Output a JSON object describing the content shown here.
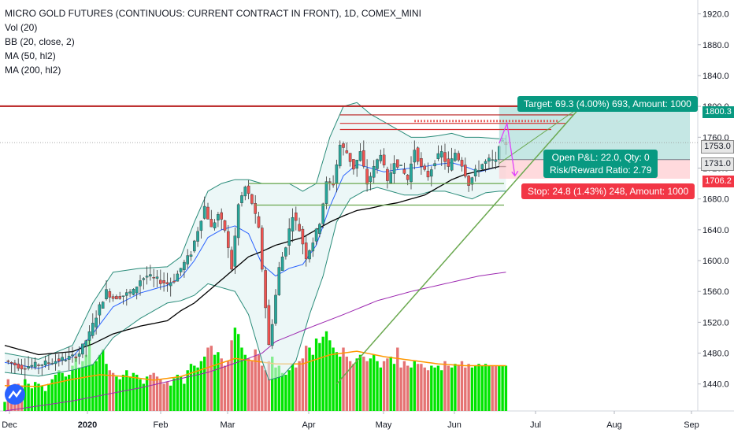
{
  "legend": {
    "title": "MICRO GOLD FUTURES (CONTINUOUS: CURRENT CONTRACT IN FRONT), 1D, COMEX_MINI",
    "vol": "Vol (20)",
    "bb": "BB (20, close, 2)",
    "ma50": "MA (50, hl2)",
    "ma200": "MA (200, hl2)"
  },
  "price_boxes": {
    "target_level": "1800.3",
    "current": "1753.0",
    "entry": "1731.0",
    "stop_level": "1706.2"
  },
  "callouts": {
    "target": "Target: 69.3 (4.00%) 693, Amount: 1000",
    "open_pnl": "Open P&L: 22.0, Qty: 0",
    "risk_reward": "Risk/Reward Ratio: 2.79",
    "stop": "Stop: 24.8 (1.43%) 248, Amount: 1000"
  },
  "colors": {
    "up": "#26a69a",
    "down": "#ef5350",
    "vol_up": "#00e500",
    "vol_down": "#e57373",
    "bb_band": "#2a8c7a",
    "ma50": "#000000",
    "ma200": "#9c27b0",
    "bb_basis": "#2962ff",
    "vol_ma": "#ff9800",
    "target_fill": "#b2dfdb",
    "stop_fill": "#ffcdd2",
    "target_box": "#089981",
    "stop_box": "#f23645",
    "res_line": "#b71c1c",
    "support_line": "#6aa84f"
  },
  "chart_data": {
    "type": "candlestick",
    "title": "MICRO GOLD FUTURES (CONTINUOUS: CURRENT CONTRACT IN FRONT), 1D, COMEX_MINI",
    "x_ticks": [
      "Dec",
      "2020",
      "Feb",
      "Mar",
      "Apr",
      "May",
      "Jun",
      "Jul",
      "Aug",
      "Sep"
    ],
    "y_ticks": [
      1440,
      1480,
      1520,
      1560,
      1600,
      1640,
      1680,
      1720,
      1760,
      1800,
      1840,
      1880,
      1920
    ],
    "ylim": [
      1405,
      1938
    ],
    "price_path": [
      [
        0,
        1470
      ],
      [
        5,
        1462
      ],
      [
        10,
        1465
      ],
      [
        15,
        1470
      ],
      [
        20,
        1475
      ],
      [
        22,
        1480
      ],
      [
        25,
        1505
      ],
      [
        28,
        1540
      ],
      [
        30,
        1560
      ],
      [
        32,
        1552
      ],
      [
        35,
        1555
      ],
      [
        38,
        1560
      ],
      [
        40,
        1575
      ],
      [
        42,
        1580
      ],
      [
        45,
        1575
      ],
      [
        48,
        1570
      ],
      [
        50,
        1575
      ],
      [
        52,
        1590
      ],
      [
        55,
        1610
      ],
      [
        57,
        1640
      ],
      [
        59,
        1670
      ],
      [
        61,
        1642
      ],
      [
        63,
        1660
      ],
      [
        65,
        1640
      ],
      [
        67,
        1590
      ],
      [
        69,
        1672
      ],
      [
        71,
        1695
      ],
      [
        73,
        1675
      ],
      [
        75,
        1640
      ],
      [
        76,
        1590
      ],
      [
        77,
        1540
      ],
      [
        78,
        1490
      ],
      [
        79,
        1520
      ],
      [
        81,
        1590
      ],
      [
        83,
        1620
      ],
      [
        85,
        1660
      ],
      [
        87,
        1640
      ],
      [
        89,
        1605
      ],
      [
        91,
        1625
      ],
      [
        93,
        1650
      ],
      [
        95,
        1700
      ],
      [
        97,
        1700
      ],
      [
        99,
        1750
      ],
      [
        101,
        1740
      ],
      [
        103,
        1720
      ],
      [
        105,
        1740
      ],
      [
        107,
        1700
      ],
      [
        109,
        1720
      ],
      [
        111,
        1740
      ],
      [
        113,
        1700
      ],
      [
        115,
        1730
      ],
      [
        117,
        1720
      ],
      [
        119,
        1705
      ],
      [
        121,
        1745
      ],
      [
        123,
        1720
      ],
      [
        125,
        1710
      ],
      [
        127,
        1730
      ],
      [
        129,
        1740
      ],
      [
        131,
        1720
      ],
      [
        133,
        1740
      ],
      [
        135,
        1725
      ],
      [
        137,
        1700
      ],
      [
        139,
        1715
      ],
      [
        141,
        1725
      ],
      [
        143,
        1730
      ],
      [
        145,
        1728
      ],
      [
        146,
        1752
      ]
    ],
    "bb_upper_path": [
      [
        0,
        1480
      ],
      [
        10,
        1472
      ],
      [
        20,
        1490
      ],
      [
        26,
        1545
      ],
      [
        32,
        1585
      ],
      [
        40,
        1590
      ],
      [
        48,
        1592
      ],
      [
        52,
        1605
      ],
      [
        56,
        1650
      ],
      [
        60,
        1690
      ],
      [
        64,
        1700
      ],
      [
        68,
        1705
      ],
      [
        72,
        1705
      ],
      [
        76,
        1700
      ],
      [
        80,
        1700
      ],
      [
        84,
        1700
      ],
      [
        88,
        1690
      ],
      [
        92,
        1700
      ],
      [
        96,
        1760
      ],
      [
        100,
        1800
      ],
      [
        104,
        1805
      ],
      [
        108,
        1790
      ],
      [
        112,
        1780
      ],
      [
        116,
        1770
      ],
      [
        120,
        1760
      ],
      [
        124,
        1760
      ],
      [
        128,
        1762
      ],
      [
        132,
        1765
      ],
      [
        136,
        1760
      ],
      [
        140,
        1760
      ],
      [
        146,
        1758
      ]
    ],
    "bb_lower_path": [
      [
        0,
        1455
      ],
      [
        10,
        1450
      ],
      [
        20,
        1458
      ],
      [
        26,
        1465
      ],
      [
        32,
        1500
      ],
      [
        40,
        1525
      ],
      [
        48,
        1545
      ],
      [
        52,
        1548
      ],
      [
        56,
        1555
      ],
      [
        60,
        1570
      ],
      [
        64,
        1565
      ],
      [
        68,
        1560
      ],
      [
        72,
        1530
      ],
      [
        76,
        1470
      ],
      [
        78,
        1445
      ],
      [
        82,
        1450
      ],
      [
        86,
        1470
      ],
      [
        90,
        1530
      ],
      [
        94,
        1580
      ],
      [
        98,
        1650
      ],
      [
        102,
        1680
      ],
      [
        106,
        1690
      ],
      [
        110,
        1695
      ],
      [
        114,
        1690
      ],
      [
        118,
        1685
      ],
      [
        122,
        1685
      ],
      [
        126,
        1690
      ],
      [
        130,
        1690
      ],
      [
        134,
        1685
      ],
      [
        138,
        1680
      ],
      [
        142,
        1688
      ],
      [
        146,
        1690
      ]
    ],
    "ma_basis_path": [
      [
        0,
        1468
      ],
      [
        10,
        1460
      ],
      [
        20,
        1475
      ],
      [
        26,
        1505
      ],
      [
        32,
        1540
      ],
      [
        40,
        1558
      ],
      [
        48,
        1568
      ],
      [
        52,
        1578
      ],
      [
        56,
        1600
      ],
      [
        60,
        1630
      ],
      [
        64,
        1640
      ],
      [
        68,
        1645
      ],
      [
        72,
        1635
      ],
      [
        76,
        1595
      ],
      [
        80,
        1580
      ],
      [
        84,
        1590
      ],
      [
        88,
        1595
      ],
      [
        92,
        1620
      ],
      [
        96,
        1670
      ],
      [
        100,
        1710
      ],
      [
        104,
        1725
      ],
      [
        108,
        1720
      ],
      [
        112,
        1715
      ],
      [
        116,
        1718
      ],
      [
        120,
        1720
      ],
      [
        124,
        1722
      ],
      [
        128,
        1725
      ],
      [
        132,
        1727
      ],
      [
        136,
        1722
      ],
      [
        140,
        1715
      ],
      [
        146,
        1722
      ]
    ],
    "ma50_path": [
      [
        0,
        1490
      ],
      [
        10,
        1478
      ],
      [
        20,
        1482
      ],
      [
        26,
        1492
      ],
      [
        32,
        1505
      ],
      [
        40,
        1515
      ],
      [
        48,
        1522
      ],
      [
        52,
        1535
      ],
      [
        56,
        1545
      ],
      [
        60,
        1560
      ],
      [
        64,
        1575
      ],
      [
        68,
        1590
      ],
      [
        72,
        1605
      ],
      [
        76,
        1612
      ],
      [
        80,
        1620
      ],
      [
        84,
        1625
      ],
      [
        88,
        1630
      ],
      [
        92,
        1640
      ],
      [
        96,
        1650
      ],
      [
        100,
        1658
      ],
      [
        104,
        1665
      ],
      [
        108,
        1668
      ],
      [
        112,
        1672
      ],
      [
        116,
        1675
      ],
      [
        120,
        1680
      ],
      [
        124,
        1685
      ],
      [
        128,
        1695
      ],
      [
        132,
        1705
      ],
      [
        136,
        1712
      ],
      [
        140,
        1716
      ],
      [
        146,
        1722
      ]
    ],
    "ma200_path": [
      [
        0,
        1405
      ],
      [
        20,
        1418
      ],
      [
        40,
        1435
      ],
      [
        60,
        1455
      ],
      [
        70,
        1470
      ],
      [
        76,
        1480
      ],
      [
        80,
        1495
      ],
      [
        90,
        1513
      ],
      [
        100,
        1530
      ],
      [
        110,
        1548
      ],
      [
        120,
        1560
      ],
      [
        130,
        1570
      ],
      [
        140,
        1580
      ],
      [
        148,
        1585
      ]
    ],
    "volume_levels": [
      0.1,
      0.35,
      0.25,
      0.3,
      0.3,
      0.28,
      0.35,
      0.3,
      0.25,
      0.32,
      0.3,
      0.28,
      0.22,
      0.3,
      0.35,
      0.4,
      0.45,
      0.42,
      0.38,
      0.4,
      0.5,
      0.6,
      0.48,
      0.55,
      0.62,
      0.78,
      0.52,
      0.55,
      0.62,
      0.68,
      0.52,
      0.45,
      0.42,
      0.38,
      0.35,
      0.4,
      0.45,
      0.38,
      0.42,
      0.4,
      0.35,
      0.3,
      0.38,
      0.4,
      0.42,
      0.38,
      0.35,
      0.3,
      0.32,
      0.28,
      0.36,
      0.4,
      0.38,
      0.3,
      0.45,
      0.52,
      0.5,
      0.48,
      0.55,
      0.6,
      0.7,
      0.72,
      0.62,
      0.65,
      0.58,
      0.5,
      0.55,
      0.78,
      0.92,
      0.85,
      0.7,
      0.62,
      0.58,
      0.55,
      0.68,
      0.62,
      0.5,
      0.45,
      0.55,
      0.6,
      0.48,
      0.5,
      0.42,
      0.4,
      0.45,
      0.52,
      0.48,
      0.55,
      0.58,
      0.72,
      0.7,
      0.62,
      0.8,
      0.75,
      0.82,
      0.88,
      0.78,
      0.7,
      0.65,
      0.6,
      0.7,
      0.6,
      0.55,
      0.52,
      0.58,
      0.62,
      0.6,
      0.55,
      0.58,
      0.62,
      0.55,
      0.48,
      0.55,
      0.58,
      0.6,
      0.52,
      0.7,
      0.48,
      0.55,
      0.5,
      0.48,
      0.55,
      0.52,
      0.52,
      0.48,
      0.45,
      0.5,
      0.48,
      0.5,
      0.45,
      0.55,
      0.5,
      0.48,
      0.52,
      0.5,
      0.55,
      0.48,
      0.52,
      0.48,
      0.5,
      0.52,
      0.5,
      0.52,
      0.5
    ],
    "volume_ma_path": [
      [
        0,
        0.28
      ],
      [
        10,
        0.27
      ],
      [
        20,
        0.35
      ],
      [
        28,
        0.4
      ],
      [
        36,
        0.38
      ],
      [
        44,
        0.34
      ],
      [
        52,
        0.38
      ],
      [
        60,
        0.48
      ],
      [
        68,
        0.58
      ],
      [
        74,
        0.55
      ],
      [
        80,
        0.52
      ],
      [
        88,
        0.52
      ],
      [
        96,
        0.62
      ],
      [
        104,
        0.66
      ],
      [
        112,
        0.6
      ],
      [
        120,
        0.56
      ],
      [
        128,
        0.52
      ],
      [
        136,
        0.5
      ],
      [
        146,
        0.5
      ]
    ],
    "annotations": {
      "resistance_top": 1800.3,
      "resistance_2": 1789,
      "resistance_3": 1778,
      "range_high": 1770,
      "support_1": 1700,
      "support_2": 1672,
      "entry": 1731.0,
      "target": 1800.3,
      "stop": 1706.2
    }
  }
}
